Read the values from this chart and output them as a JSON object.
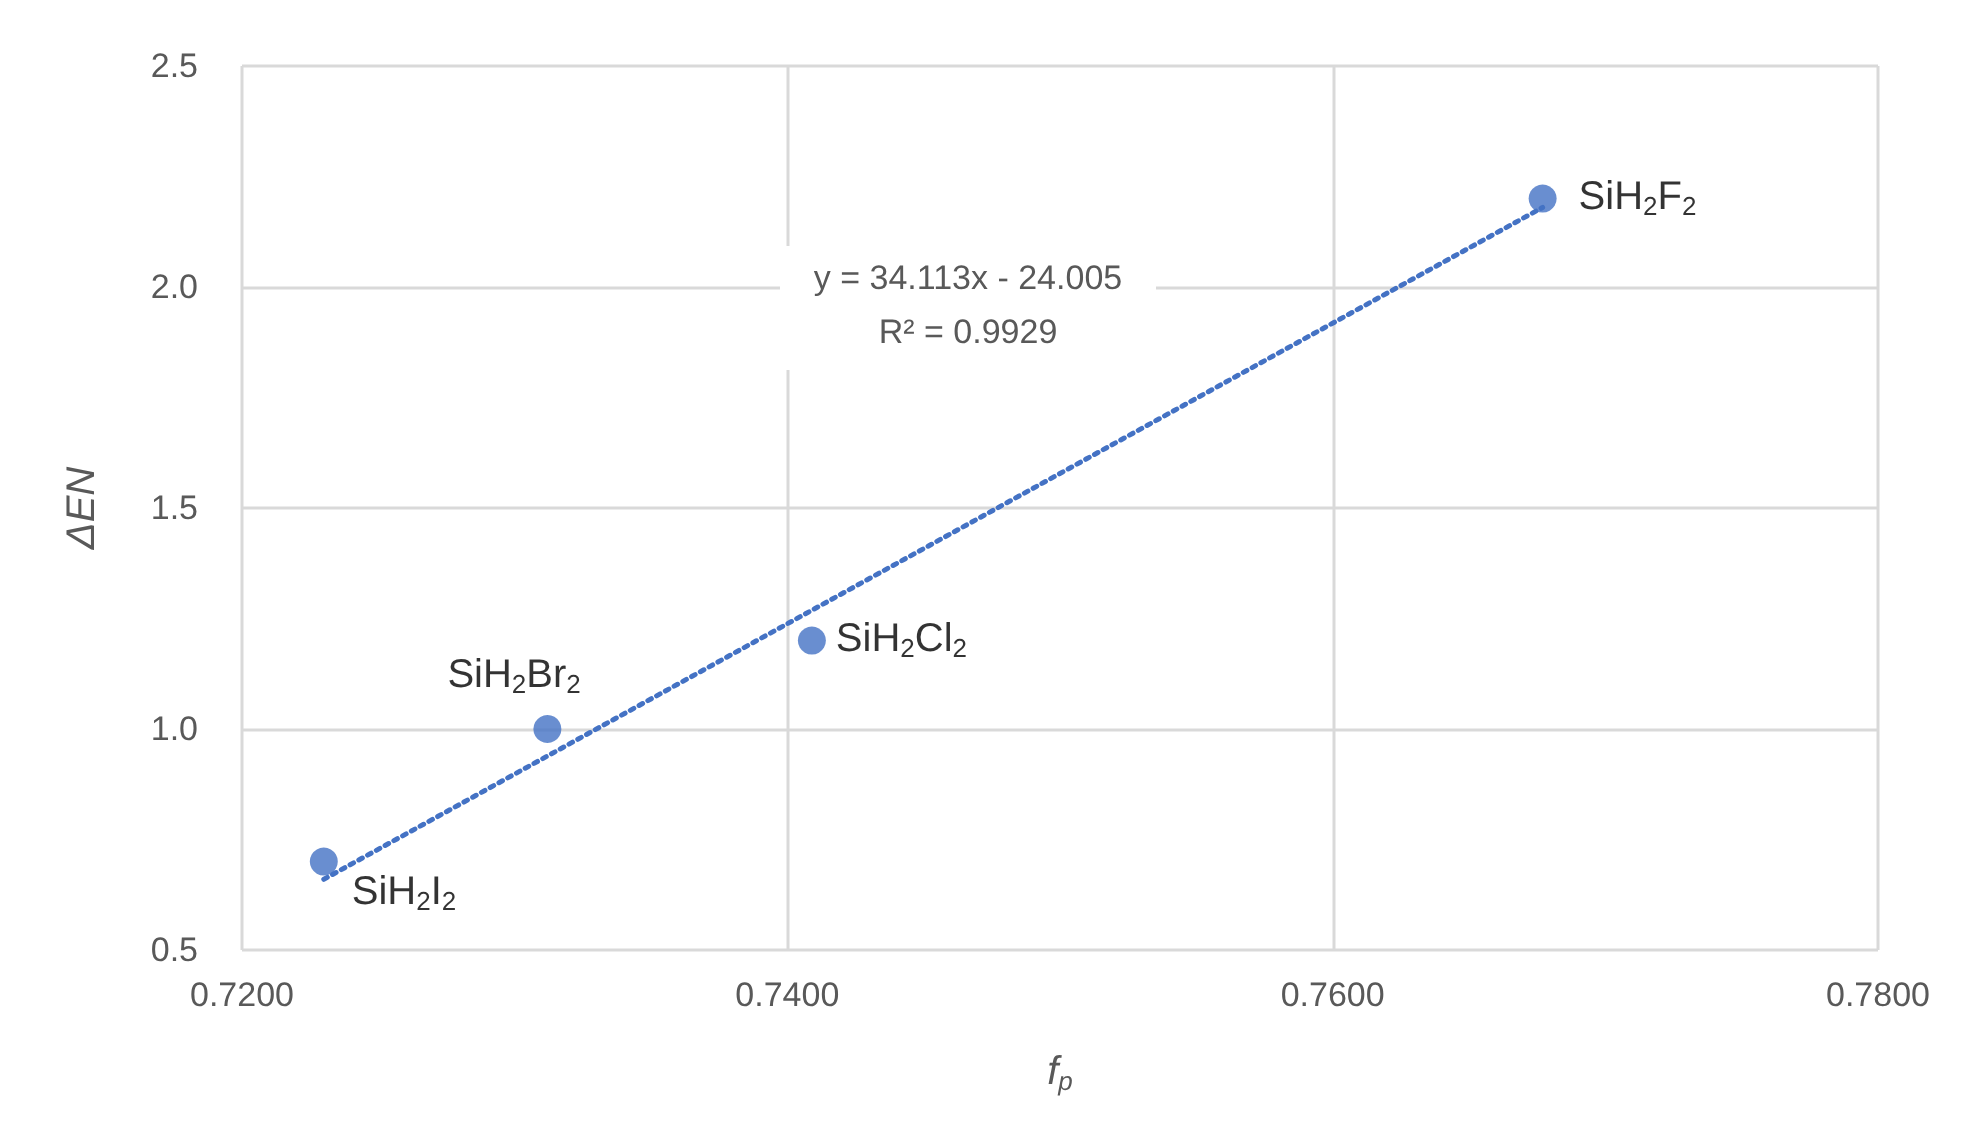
{
  "chart_data": {
    "type": "scatter",
    "xlabel": "f$_{p}$",
    "ylabel": "ΔEN",
    "xlim": [
      0.72,
      0.78
    ],
    "xticks": [
      {
        "value": 0.72,
        "label": "0.7200"
      },
      {
        "value": 0.74,
        "label": "0.7400"
      },
      {
        "value": 0.76,
        "label": "0.7600"
      },
      {
        "value": 0.78,
        "label": "0.7800"
      }
    ],
    "ylim": [
      0.5,
      2.5
    ],
    "yticks": [
      {
        "value": 0.5,
        "label": "0.5"
      },
      {
        "value": 1.0,
        "label": "1.0"
      },
      {
        "value": 1.5,
        "label": "1.5"
      },
      {
        "value": 2.0,
        "label": "2.0"
      },
      {
        "value": 2.5,
        "label": "2.5"
      }
    ],
    "grid": true,
    "series": [
      {
        "type": "scatter",
        "marker": "circle",
        "color": "#4472c4",
        "x": [
          0.723,
          0.7312,
          0.7409,
          0.7677
        ],
        "values": [
          0.7,
          1.0,
          1.2,
          2.2
        ]
      },
      {
        "type": "line",
        "marker": "none",
        "line_style": "dotted",
        "color": "#4472c4",
        "x": [
          0.723,
          0.7677
        ],
        "values": [
          0.66,
          2.18
        ]
      }
    ],
    "annotations": [
      {
        "text": "SiH$_{2}$I$_{2}$",
        "x": 0.723,
        "y": 0.7
      },
      {
        "text": "SiH$_{2}$Br$_{2}$",
        "x": 0.7312,
        "y": 1.0
      },
      {
        "text": "SiH$_{2}$Cl$_{2}$",
        "x": 0.7409,
        "y": 1.2
      },
      {
        "text": "SiH$_{2}$F$_{2}$",
        "x": 0.7677,
        "y": 2.2
      },
      "y = 34.113x - 24.005",
      "R² = 0.9929"
    ]
  }
}
